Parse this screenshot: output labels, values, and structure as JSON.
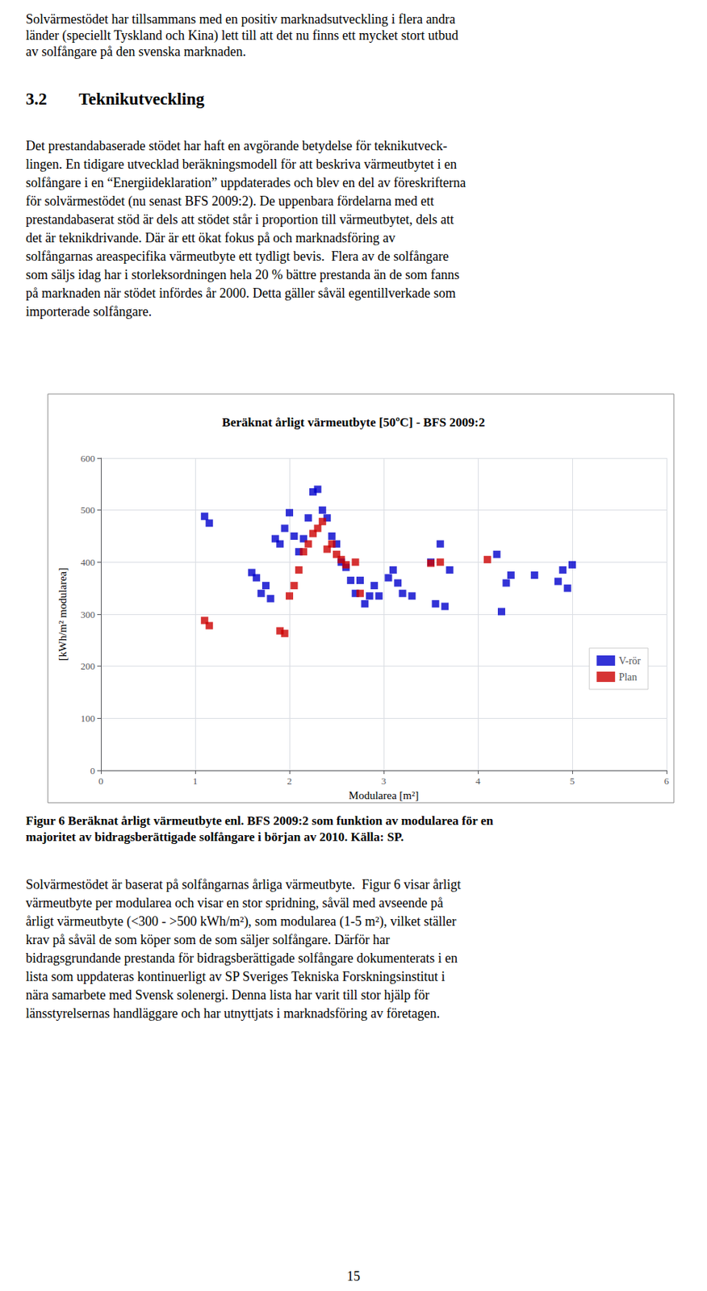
{
  "chart_data": {
    "type": "scatter",
    "title": "Beräknat årligt värmeutbyte [50ºC] - BFS 2009:2",
    "xlabel": "Modularea [m²]",
    "ylabel": "[kWh/m² modularea]",
    "xlim": [
      0,
      6
    ],
    "ylim": [
      0,
      600
    ],
    "xticks": [
      0,
      1,
      2,
      3,
      4,
      5,
      6
    ],
    "yticks": [
      0,
      100,
      200,
      300,
      400,
      500,
      600
    ],
    "grid": true,
    "legend": "lower right",
    "series": [
      {
        "name": "V-rör",
        "color": "#0000CC",
        "marker": "square",
        "x": [
          1.1,
          1.15,
          1.6,
          1.65,
          1.7,
          1.75,
          1.8,
          1.85,
          1.9,
          1.95,
          2.0,
          2.05,
          2.1,
          2.15,
          2.2,
          2.25,
          2.3,
          2.35,
          2.4,
          2.45,
          2.5,
          2.55,
          2.6,
          2.65,
          2.7,
          2.75,
          2.8,
          2.85,
          2.9,
          2.95,
          3.05,
          3.1,
          3.15,
          3.2,
          3.3,
          3.5,
          3.55,
          3.6,
          3.65,
          3.7,
          4.2,
          4.25,
          4.3,
          4.35,
          4.6,
          4.85,
          4.9,
          4.95,
          5.0
        ],
        "values": [
          488,
          475,
          380,
          370,
          340,
          355,
          330,
          445,
          435,
          465,
          495,
          450,
          420,
          445,
          485,
          535,
          540,
          500,
          485,
          450,
          435,
          400,
          390,
          365,
          340,
          365,
          320,
          335,
          355,
          335,
          370,
          385,
          360,
          340,
          335,
          400,
          320,
          435,
          315,
          385,
          415,
          305,
          360,
          375,
          375,
          363,
          385,
          350,
          395
        ]
      },
      {
        "name": "Plan",
        "color": "#CC0000",
        "marker": "square",
        "x": [
          1.1,
          1.15,
          1.9,
          1.95,
          2.0,
          2.05,
          2.1,
          2.15,
          2.2,
          2.25,
          2.3,
          2.35,
          2.4,
          2.45,
          2.5,
          2.55,
          2.6,
          2.7,
          2.75,
          3.5,
          3.6,
          4.1
        ],
        "values": [
          288,
          278,
          268,
          263,
          335,
          355,
          385,
          420,
          435,
          455,
          465,
          478,
          425,
          435,
          415,
          405,
          395,
          400,
          340,
          398,
          400,
          405
        ]
      }
    ],
    "annotations": [
      "Solvärmestödet har tillsammans med en positiv marknadsutveckling i flera andra\nländer (speciellt Tyskland och Kina) lett till att det nu finns ett mycket stort utbud\nav solfångare på den svenska marknaden.",
      "3.2",
      "Teknikutveckling",
      "Det prestandabaserade stödet har haft en avgörande betydelse för teknikutveck-\nlingen. En tidigare utvecklad beräkningsmodell för att beskriva värmeutbytet i en\nsolfångare i en “Energiideklaration” uppdaterades och blev en del av föreskrifterna\nför solvärmestödet (nu senast BFS 2009:2). De uppenbara fördelarna med ett\nprestandabaserat stöd är dels att stödet står i proportion till värmeutbytet, dels att\ndet är teknikdrivande. Där är ett ökat fokus på och marknadsföring av\nsolfångarnas areaspecifika värmeutbyte ett tydligt bevis.  Flera av de solfångare\nsom säljs idag har i storleksordningen hela 20 % bättre prestanda än de som fanns\npå marknaden när stödet infördes år 2000. Detta gäller såväl egentillverkade som\nimporterade solfångare.",
      "Figur 6 Beräknat årligt värmeutbyte enl. BFS 2009:2 som funktion av modularea för en\nmajoritet av bidragsberättigade solfångare i början av 2010. Källa: SP.",
      "Solvärmestödet är baserat på solfångarnas årliga värmeutbyte.  Figur 6 visar årligt\nvärmeutbyte per modularea och visar en stor spridning, såväl med avseende på\nårligt värmeutbyte (<300 - >500 kWh/m²), som modularea (1-5 m²), vilket ställer\nkrav på såväl de som köper som de som säljer solfångare. Därför har\nbidragsgrundande prestanda för bidragsberättigade solfångare dokumenterats i en\nlista som uppdateras kontinuerligt av SP Sveriges Tekniska Forskningsinstitut i\nnära samarbete med Svensk solenergi. Denna lista har varit till stor hjälp för\nlänsstyrelsernas handläggare och har utnyttjats i marknadsföring av företagen.",
      "15"
    ]
  }
}
